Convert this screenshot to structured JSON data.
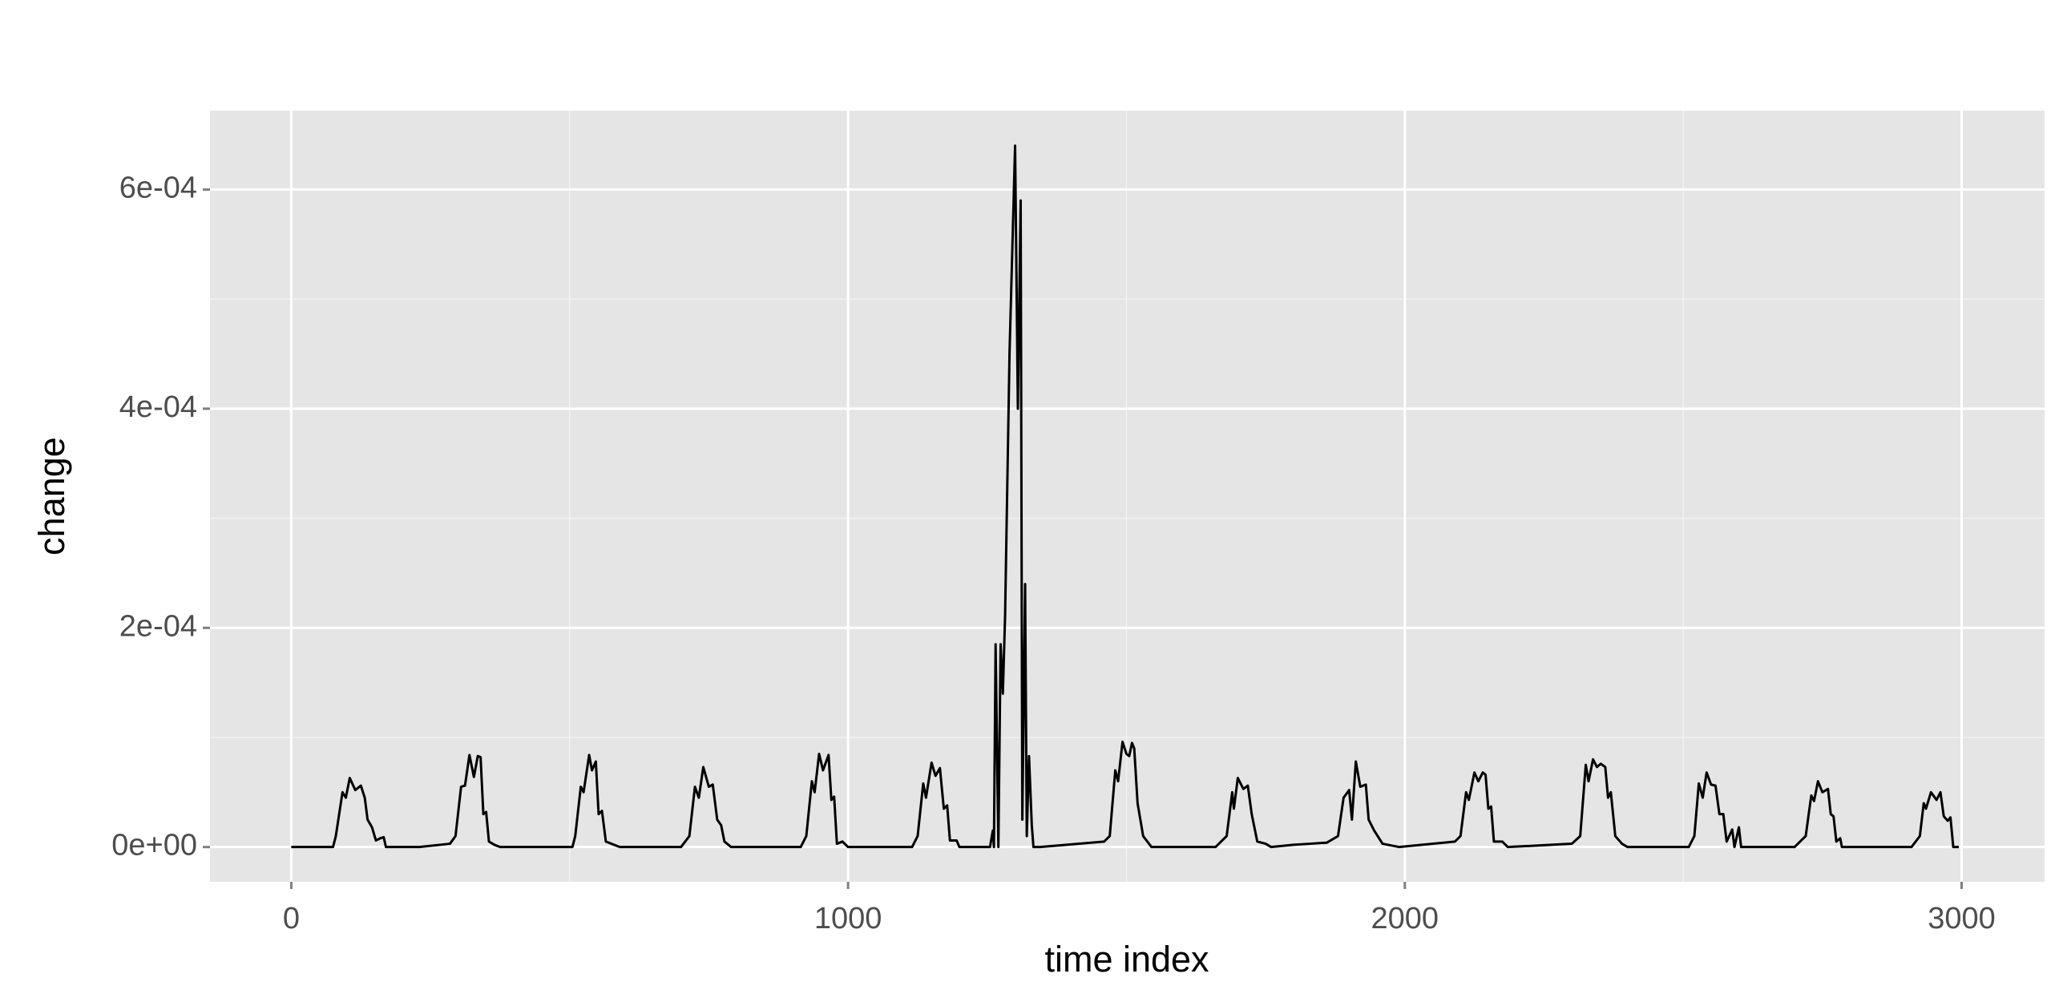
{
  "chart_data": {
    "type": "line",
    "x_label": "time index",
    "y_label": "change",
    "xlim": [
      -146,
      3149
    ],
    "ylim": [
      -3.17e-05,
      0.000672
    ],
    "xticks": [
      0,
      1000,
      2000,
      3000
    ],
    "yticks": [
      {
        "value": 0,
        "label": "0e+00"
      },
      {
        "value": 0.0002,
        "label": "2e-04"
      },
      {
        "value": 0.0004,
        "label": "4e-04"
      },
      {
        "value": 0.0006,
        "label": "6e-04"
      }
    ],
    "x_minor_ticks": [
      500,
      1500,
      2500
    ],
    "y_minor_ticks": [
      0.0001,
      0.0003,
      0.0005
    ],
    "grid": true,
    "x": [
      0,
      75,
      80,
      92,
      98,
      105,
      115,
      125,
      132,
      137,
      145,
      152,
      160,
      166,
      170,
      230,
      285,
      295,
      305,
      312,
      320,
      328,
      335,
      340,
      345,
      350,
      355,
      365,
      375,
      505,
      510,
      520,
      525,
      535,
      540,
      547,
      552,
      558,
      565,
      580,
      590,
      700,
      715,
      725,
      732,
      740,
      750,
      757,
      765,
      772,
      778,
      790,
      915,
      925,
      935,
      940,
      948,
      955,
      965,
      970,
      975,
      980,
      990,
      1000,
      1115,
      1125,
      1135,
      1140,
      1150,
      1157,
      1165,
      1172,
      1178,
      1183,
      1195,
      1200,
      1255,
      1260,
      1262,
      1265,
      1270,
      1274,
      1278,
      1282,
      1290,
      1300,
      1305,
      1310,
      1313,
      1318,
      1321,
      1325,
      1330,
      1333,
      1345,
      1460,
      1470,
      1480,
      1485,
      1493,
      1500,
      1505,
      1510,
      1514,
      1520,
      1530,
      1545,
      1660,
      1680,
      1690,
      1693,
      1700,
      1710,
      1718,
      1725,
      1735,
      1750,
      1760,
      1800,
      1830,
      1860,
      1880,
      1890,
      1900,
      1905,
      1912,
      1920,
      1930,
      1935,
      1945,
      1960,
      1990,
      2090,
      2100,
      2110,
      2115,
      2125,
      2132,
      2140,
      2145,
      2150,
      2155,
      2160,
      2175,
      2185,
      2300,
      2315,
      2325,
      2330,
      2338,
      2345,
      2352,
      2360,
      2365,
      2370,
      2378,
      2390,
      2400,
      2510,
      2520,
      2528,
      2535,
      2542,
      2550,
      2558,
      2565,
      2572,
      2578,
      2588,
      2592,
      2600,
      2604,
      2700,
      2720,
      2730,
      2735,
      2742,
      2750,
      2760,
      2765,
      2770,
      2775,
      2782,
      2785,
      2910,
      2925,
      2932,
      2936,
      2945,
      2955,
      2962,
      2968,
      2975,
      2980,
      2985,
      2995
    ],
    "series": [
      {
        "color": "#000000",
        "values": [
          0,
          0,
          1e-05,
          5e-05,
          4.5e-05,
          6.3e-05,
          5.2e-05,
          5.6e-05,
          4.5e-05,
          2.5e-05,
          1.8e-05,
          6e-06,
          8e-06,
          9e-06,
          0,
          0,
          3e-06,
          1e-05,
          5.5e-05,
          5.6e-05,
          8.4e-05,
          6.4e-05,
          8.3e-05,
          8.2e-05,
          3e-05,
          3.2e-05,
          5e-06,
          2e-06,
          0,
          0,
          1e-05,
          5.5e-05,
          5e-05,
          8.4e-05,
          7e-05,
          7.8e-05,
          3e-05,
          3.3e-05,
          5e-06,
          2e-06,
          0,
          0,
          1e-05,
          5.5e-05,
          4.5e-05,
          7.3e-05,
          5.5e-05,
          5.7e-05,
          2.5e-05,
          2e-05,
          5e-06,
          0,
          0,
          1e-05,
          6e-05,
          5e-05,
          8.5e-05,
          7e-05,
          8.4e-05,
          4.3e-05,
          4.6e-05,
          3e-06,
          5e-06,
          0,
          0,
          1e-05,
          5.8e-05,
          4.5e-05,
          7.7e-05,
          6.5e-05,
          7.2e-05,
          3.5e-05,
          3.8e-05,
          6e-06,
          6e-06,
          0,
          0,
          1.5e-05,
          0,
          0.000185,
          0,
          0.000185,
          0.00014,
          0.00021,
          0.00045,
          0.00064,
          0.0004,
          0.00059,
          2.5e-05,
          0.00024,
          1e-05,
          8.3e-05,
          2e-05,
          0,
          0,
          5e-06,
          1e-05,
          7e-05,
          6e-05,
          9.6e-05,
          8.5e-05,
          8.3e-05,
          9.5e-05,
          9e-05,
          4e-05,
          1e-05,
          0,
          0,
          1e-05,
          5e-05,
          3.5e-05,
          6.3e-05,
          5.3e-05,
          5.6e-05,
          3e-05,
          5e-06,
          3e-06,
          0,
          2e-06,
          3e-06,
          4e-06,
          1e-05,
          4.5e-05,
          5.2e-05,
          2.5e-05,
          7.8e-05,
          5.5e-05,
          5.7e-05,
          2.5e-05,
          1.5e-05,
          3e-06,
          0,
          5e-06,
          1e-05,
          5e-05,
          4.3e-05,
          6.8e-05,
          6e-05,
          6.8e-05,
          6.6e-05,
          3.5e-05,
          3.7e-05,
          5e-06,
          5e-06,
          0,
          3e-06,
          1e-05,
          7.5e-05,
          6e-05,
          8e-05,
          7.3e-05,
          7.6e-05,
          7.3e-05,
          4.5e-05,
          5e-05,
          1e-05,
          3e-06,
          0,
          0,
          1e-05,
          5.8e-05,
          4.5e-05,
          6.8e-05,
          5.7e-05,
          5.6e-05,
          3e-05,
          3e-05,
          5e-06,
          1.6e-05,
          0,
          1.8e-05,
          0,
          0,
          1e-05,
          4.7e-05,
          4.2e-05,
          6e-05,
          5e-05,
          5.3e-05,
          3e-05,
          2.8e-05,
          5e-06,
          8e-06,
          0,
          0,
          1e-05,
          4e-05,
          3.5e-05,
          5e-05,
          4.3e-05,
          5e-05,
          2.8e-05,
          2.4e-05,
          2.7e-05,
          0,
          0
        ]
      }
    ]
  }
}
